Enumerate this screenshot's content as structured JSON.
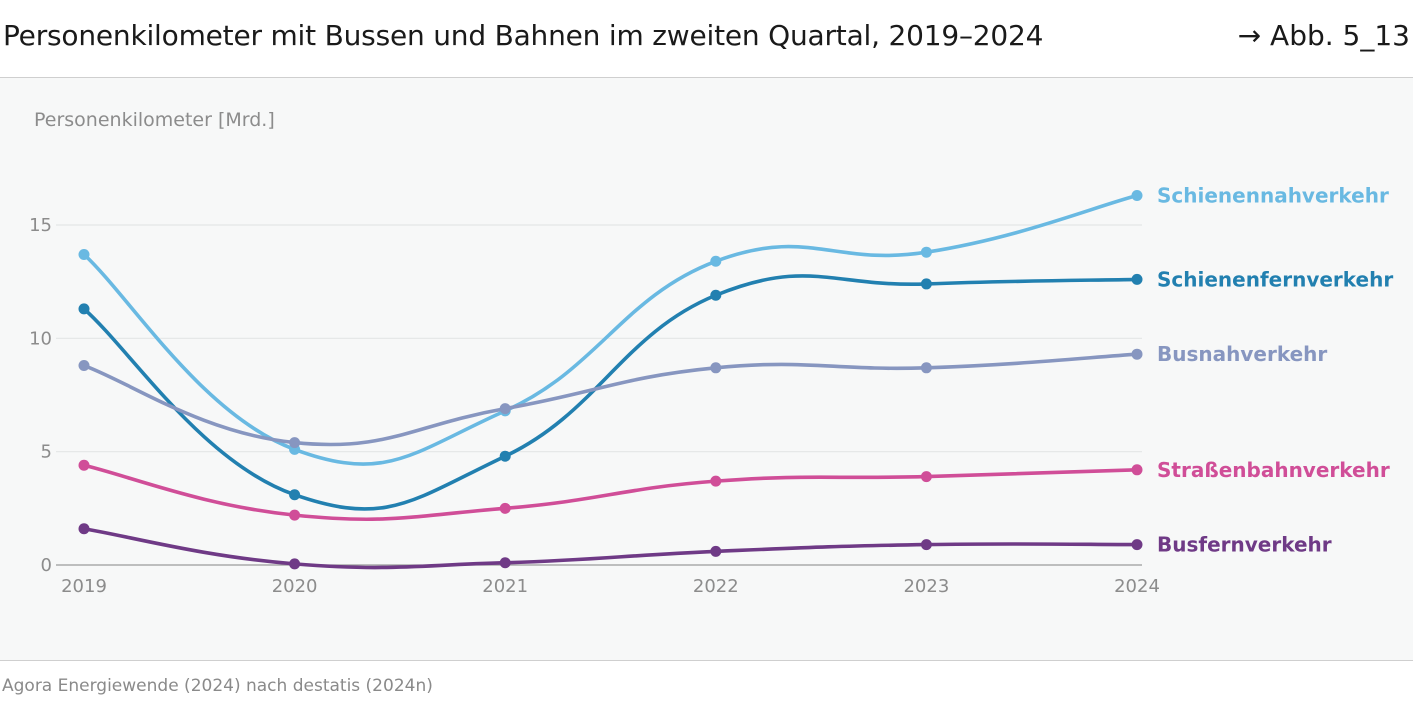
{
  "header": {
    "title": "Personenkilometer mit Bussen und Bahnen im zweiten Quartal, 2019–2024",
    "figure_ref": "→ Abb. 5_13"
  },
  "footer": {
    "source": "Agora Energiewende (2024) nach destatis (2024n)"
  },
  "chart_data": {
    "type": "line",
    "ylabel": "Personenkilometer [Mrd.]",
    "xlabel": "",
    "x": [
      2019,
      2020,
      2021,
      2022,
      2023,
      2024
    ],
    "x_tick_labels": [
      "2019",
      "2020",
      "2021",
      "2022",
      "2023",
      "2024"
    ],
    "ylim": [
      0,
      17
    ],
    "y_ticks": [
      0,
      5,
      10,
      15
    ],
    "y_tick_labels": [
      "0",
      "5",
      "10",
      "15"
    ],
    "grid": "horizontal",
    "legend": "direct labels at line ends (right)",
    "series": [
      {
        "name": "Schienennahverkehr",
        "color": "#69b9e2",
        "values": [
          13.7,
          5.1,
          6.8,
          13.4,
          13.8,
          16.3
        ]
      },
      {
        "name": "Schienenfernverkehr",
        "color": "#2280b0",
        "values": [
          11.3,
          3.1,
          4.8,
          11.9,
          12.4,
          12.6
        ]
      },
      {
        "name": "Busnahverkehr",
        "color": "#8796c0",
        "values": [
          8.8,
          5.4,
          6.9,
          8.7,
          8.7,
          9.3
        ]
      },
      {
        "name": "Straßenbahnverkehr",
        "color": "#d04e98",
        "values": [
          4.4,
          2.2,
          2.5,
          3.7,
          3.9,
          4.2
        ]
      },
      {
        "name": "Busfernverkehr",
        "color": "#6f3a86",
        "values": [
          1.6,
          0.05,
          0.1,
          0.6,
          0.9,
          0.9
        ]
      }
    ]
  }
}
